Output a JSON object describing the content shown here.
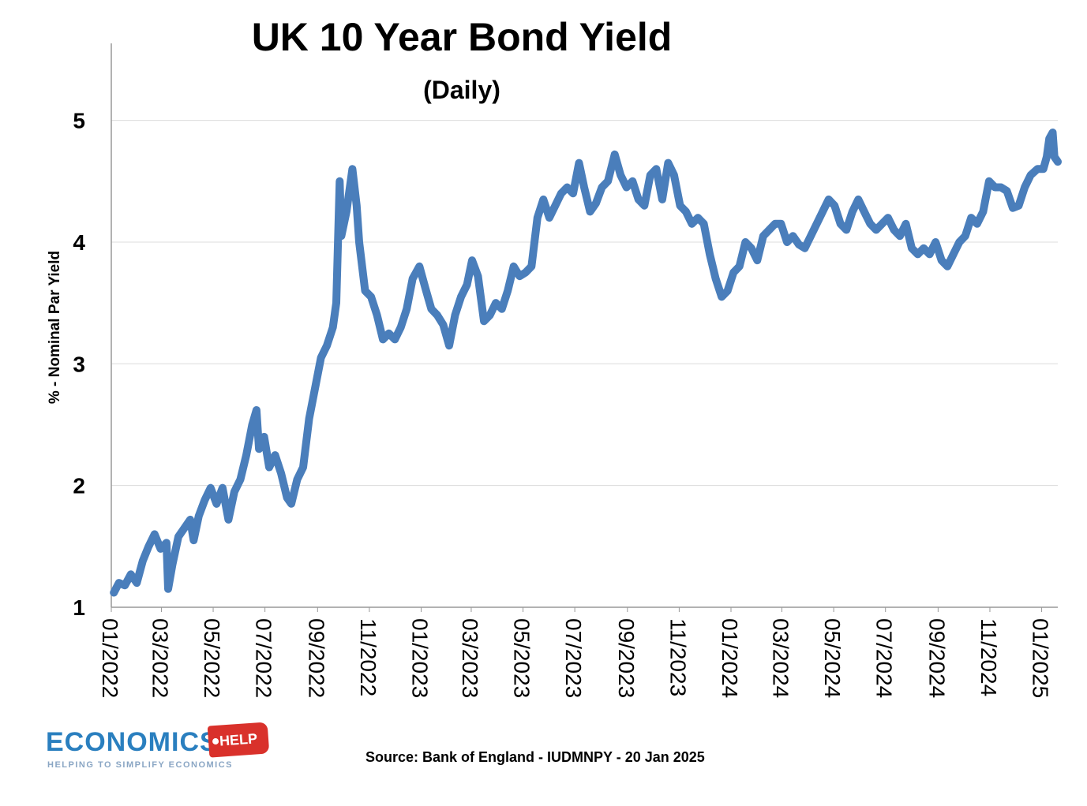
{
  "chart_data": {
    "type": "line",
    "title": "UK 10 Year Bond Yield",
    "subtitle": "(Daily)",
    "ylabel": "% - Nominal Par Yield",
    "xlabel": "",
    "ylim": [
      1,
      5.6
    ],
    "yticks": [
      1,
      2,
      3,
      4,
      5
    ],
    "xlim": [
      "2022-01-01",
      "2025-01-20"
    ],
    "xticks": [
      "01/2022",
      "03/2022",
      "05/2022",
      "07/2022",
      "09/2022",
      "11/2022",
      "01/2023",
      "03/2023",
      "05/2023",
      "07/2023",
      "09/2023",
      "11/2023",
      "01/2024",
      "03/2024",
      "05/2024",
      "07/2024",
      "09/2024",
      "11/2024",
      "01/2025"
    ],
    "grid": "horizontal",
    "legend": "none",
    "series": [
      {
        "color": "#4a7ebb",
        "points": [
          [
            "2022-01-04",
            1.12
          ],
          [
            "2022-01-10",
            1.2
          ],
          [
            "2022-01-17",
            1.18
          ],
          [
            "2022-01-24",
            1.27
          ],
          [
            "2022-01-31",
            1.2
          ],
          [
            "2022-02-07",
            1.38
          ],
          [
            "2022-02-14",
            1.5
          ],
          [
            "2022-02-21",
            1.6
          ],
          [
            "2022-02-28",
            1.48
          ],
          [
            "2022-03-07",
            1.53
          ],
          [
            "2022-03-09",
            1.15
          ],
          [
            "2022-03-14",
            1.35
          ],
          [
            "2022-03-21",
            1.58
          ],
          [
            "2022-03-28",
            1.65
          ],
          [
            "2022-04-04",
            1.72
          ],
          [
            "2022-04-08",
            1.55
          ],
          [
            "2022-04-14",
            1.75
          ],
          [
            "2022-04-21",
            1.88
          ],
          [
            "2022-04-28",
            1.98
          ],
          [
            "2022-05-05",
            1.85
          ],
          [
            "2022-05-12",
            1.98
          ],
          [
            "2022-05-19",
            1.72
          ],
          [
            "2022-05-26",
            1.95
          ],
          [
            "2022-06-02",
            2.05
          ],
          [
            "2022-06-09",
            2.25
          ],
          [
            "2022-06-16",
            2.5
          ],
          [
            "2022-06-21",
            2.62
          ],
          [
            "2022-06-24",
            2.3
          ],
          [
            "2022-06-30",
            2.4
          ],
          [
            "2022-07-06",
            2.15
          ],
          [
            "2022-07-13",
            2.25
          ],
          [
            "2022-07-20",
            2.1
          ],
          [
            "2022-07-27",
            1.9
          ],
          [
            "2022-08-01",
            1.85
          ],
          [
            "2022-08-08",
            2.05
          ],
          [
            "2022-08-15",
            2.15
          ],
          [
            "2022-08-22",
            2.55
          ],
          [
            "2022-08-29",
            2.8
          ],
          [
            "2022-09-05",
            3.05
          ],
          [
            "2022-09-12",
            3.15
          ],
          [
            "2022-09-19",
            3.3
          ],
          [
            "2022-09-23",
            3.5
          ],
          [
            "2022-09-27",
            4.5
          ],
          [
            "2022-09-29",
            4.05
          ],
          [
            "2022-10-05",
            4.25
          ],
          [
            "2022-10-12",
            4.6
          ],
          [
            "2022-10-17",
            4.3
          ],
          [
            "2022-10-20",
            4.0
          ],
          [
            "2022-10-27",
            3.6
          ],
          [
            "2022-11-03",
            3.55
          ],
          [
            "2022-11-10",
            3.4
          ],
          [
            "2022-11-17",
            3.2
          ],
          [
            "2022-11-24",
            3.25
          ],
          [
            "2022-12-01",
            3.2
          ],
          [
            "2022-12-08",
            3.3
          ],
          [
            "2022-12-15",
            3.45
          ],
          [
            "2022-12-22",
            3.7
          ],
          [
            "2022-12-30",
            3.8
          ],
          [
            "2023-01-06",
            3.62
          ],
          [
            "2023-01-13",
            3.45
          ],
          [
            "2023-01-20",
            3.4
          ],
          [
            "2023-01-27",
            3.32
          ],
          [
            "2023-02-03",
            3.15
          ],
          [
            "2023-02-10",
            3.4
          ],
          [
            "2023-02-17",
            3.55
          ],
          [
            "2023-02-24",
            3.65
          ],
          [
            "2023-03-02",
            3.85
          ],
          [
            "2023-03-09",
            3.72
          ],
          [
            "2023-03-16",
            3.35
          ],
          [
            "2023-03-23",
            3.4
          ],
          [
            "2023-03-30",
            3.5
          ],
          [
            "2023-04-06",
            3.45
          ],
          [
            "2023-04-13",
            3.6
          ],
          [
            "2023-04-20",
            3.8
          ],
          [
            "2023-04-27",
            3.72
          ],
          [
            "2023-05-04",
            3.75
          ],
          [
            "2023-05-11",
            3.8
          ],
          [
            "2023-05-18",
            4.2
          ],
          [
            "2023-05-25",
            4.35
          ],
          [
            "2023-06-01",
            4.2
          ],
          [
            "2023-06-08",
            4.3
          ],
          [
            "2023-06-15",
            4.4
          ],
          [
            "2023-06-22",
            4.45
          ],
          [
            "2023-06-29",
            4.4
          ],
          [
            "2023-07-06",
            4.65
          ],
          [
            "2023-07-12",
            4.45
          ],
          [
            "2023-07-19",
            4.25
          ],
          [
            "2023-07-26",
            4.32
          ],
          [
            "2023-08-02",
            4.45
          ],
          [
            "2023-08-09",
            4.5
          ],
          [
            "2023-08-17",
            4.72
          ],
          [
            "2023-08-24",
            4.55
          ],
          [
            "2023-08-31",
            4.45
          ],
          [
            "2023-09-07",
            4.5
          ],
          [
            "2023-09-14",
            4.35
          ],
          [
            "2023-09-21",
            4.3
          ],
          [
            "2023-09-28",
            4.55
          ],
          [
            "2023-10-05",
            4.6
          ],
          [
            "2023-10-12",
            4.35
          ],
          [
            "2023-10-19",
            4.65
          ],
          [
            "2023-10-26",
            4.55
          ],
          [
            "2023-11-02",
            4.3
          ],
          [
            "2023-11-09",
            4.25
          ],
          [
            "2023-11-16",
            4.15
          ],
          [
            "2023-11-23",
            4.2
          ],
          [
            "2023-11-30",
            4.15
          ],
          [
            "2023-12-07",
            3.9
          ],
          [
            "2023-12-14",
            3.7
          ],
          [
            "2023-12-21",
            3.55
          ],
          [
            "2023-12-28",
            3.6
          ],
          [
            "2024-01-04",
            3.75
          ],
          [
            "2024-01-11",
            3.8
          ],
          [
            "2024-01-18",
            4.0
          ],
          [
            "2024-01-25",
            3.95
          ],
          [
            "2024-02-01",
            3.85
          ],
          [
            "2024-02-08",
            4.05
          ],
          [
            "2024-02-15",
            4.1
          ],
          [
            "2024-02-22",
            4.15
          ],
          [
            "2024-02-29",
            4.15
          ],
          [
            "2024-03-07",
            4.0
          ],
          [
            "2024-03-14",
            4.05
          ],
          [
            "2024-03-21",
            3.98
          ],
          [
            "2024-03-28",
            3.95
          ],
          [
            "2024-04-04",
            4.05
          ],
          [
            "2024-04-11",
            4.15
          ],
          [
            "2024-04-18",
            4.25
          ],
          [
            "2024-04-25",
            4.35
          ],
          [
            "2024-05-02",
            4.3
          ],
          [
            "2024-05-09",
            4.15
          ],
          [
            "2024-05-16",
            4.1
          ],
          [
            "2024-05-23",
            4.25
          ],
          [
            "2024-05-30",
            4.35
          ],
          [
            "2024-06-06",
            4.25
          ],
          [
            "2024-06-13",
            4.15
          ],
          [
            "2024-06-20",
            4.1
          ],
          [
            "2024-06-27",
            4.15
          ],
          [
            "2024-07-04",
            4.2
          ],
          [
            "2024-07-11",
            4.1
          ],
          [
            "2024-07-18",
            4.05
          ],
          [
            "2024-07-25",
            4.15
          ],
          [
            "2024-08-01",
            3.95
          ],
          [
            "2024-08-08",
            3.9
          ],
          [
            "2024-08-15",
            3.95
          ],
          [
            "2024-08-22",
            3.9
          ],
          [
            "2024-08-29",
            4.0
          ],
          [
            "2024-09-05",
            3.85
          ],
          [
            "2024-09-12",
            3.8
          ],
          [
            "2024-09-19",
            3.9
          ],
          [
            "2024-09-26",
            4.0
          ],
          [
            "2024-10-03",
            4.05
          ],
          [
            "2024-10-10",
            4.2
          ],
          [
            "2024-10-17",
            4.15
          ],
          [
            "2024-10-24",
            4.25
          ],
          [
            "2024-10-31",
            4.5
          ],
          [
            "2024-11-07",
            4.45
          ],
          [
            "2024-11-14",
            4.45
          ],
          [
            "2024-11-21",
            4.42
          ],
          [
            "2024-11-28",
            4.28
          ],
          [
            "2024-12-05",
            4.3
          ],
          [
            "2024-12-12",
            4.45
          ],
          [
            "2024-12-19",
            4.55
          ],
          [
            "2024-12-27",
            4.6
          ],
          [
            "2025-01-03",
            4.6
          ],
          [
            "2025-01-07",
            4.7
          ],
          [
            "2025-01-10",
            4.85
          ],
          [
            "2025-01-14",
            4.9
          ],
          [
            "2025-01-16",
            4.7
          ],
          [
            "2025-01-20",
            4.66
          ]
        ]
      }
    ]
  },
  "source_note": "Source: Bank of England - IUDMNPY - 20 Jan 2025",
  "logo": {
    "word": "ECONOMICS",
    "tag": "HELP",
    "tagline": "HELPING TO SIMPLIFY ECONOMICS"
  }
}
